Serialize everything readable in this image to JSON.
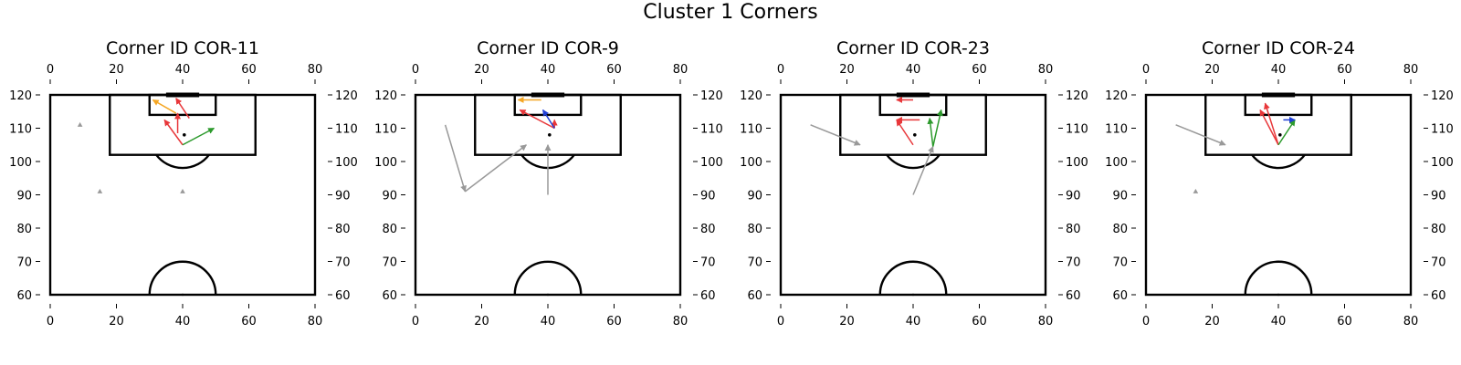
{
  "figure_title": "Cluster 1 Corners",
  "colors": {
    "pitch_lines": "#000000",
    "red": "#e8373a",
    "green": "#2c9a2c",
    "blue": "#1f3fd6",
    "orange": "#f5a623",
    "grey": "#999999"
  },
  "chart_data": [
    {
      "type": "scatter",
      "title": "Corner ID COR-11",
      "xlim": [
        0,
        80
      ],
      "ylim": [
        60,
        120
      ],
      "xticks": [
        0,
        20,
        40,
        60,
        80
      ],
      "yticks": [
        60,
        70,
        80,
        90,
        100,
        110,
        120
      ],
      "arrows": [
        {
          "color": "red",
          "from": [
            40,
            105
          ],
          "to": [
            34.5,
            112.5
          ]
        },
        {
          "color": "red",
          "from": [
            38.5,
            108.5
          ],
          "to": [
            38.5,
            114.5
          ]
        },
        {
          "color": "red",
          "from": [
            42,
            113
          ],
          "to": [
            38,
            119
          ]
        },
        {
          "color": "orange",
          "from": [
            38,
            114.5
          ],
          "to": [
            31,
            118.5
          ]
        },
        {
          "color": "green",
          "from": [
            40,
            105
          ],
          "to": [
            49.5,
            110
          ]
        }
      ],
      "markers": [
        {
          "color": "grey",
          "x": 9,
          "y": 111
        },
        {
          "color": "grey",
          "x": 15,
          "y": 91
        },
        {
          "color": "grey",
          "x": 40,
          "y": 91
        },
        {
          "color": "black",
          "x": 40.5,
          "y": 108
        }
      ]
    },
    {
      "type": "scatter",
      "title": "Corner ID COR-9",
      "xlim": [
        0,
        80
      ],
      "ylim": [
        60,
        120
      ],
      "xticks": [
        0,
        20,
        40,
        60,
        80
      ],
      "yticks": [
        60,
        70,
        80,
        90,
        100,
        110,
        120
      ],
      "arrows": [
        {
          "color": "grey",
          "from": [
            9,
            111
          ],
          "to": [
            15,
            91
          ]
        },
        {
          "color": "grey",
          "from": [
            15,
            91
          ],
          "to": [
            33.5,
            105
          ]
        },
        {
          "color": "grey",
          "from": [
            40,
            90
          ],
          "to": [
            40,
            105
          ]
        },
        {
          "color": "orange",
          "from": [
            38,
            118.5
          ],
          "to": [
            31,
            118.5
          ]
        },
        {
          "color": "red",
          "from": [
            42,
            110
          ],
          "to": [
            31.5,
            115.5
          ]
        },
        {
          "color": "red",
          "from": [
            42,
            110
          ],
          "to": [
            42,
            112.5
          ]
        },
        {
          "color": "blue",
          "from": [
            42,
            110
          ],
          "to": [
            38.5,
            115.5
          ]
        }
      ],
      "markers": [
        {
          "color": "black",
          "x": 40.5,
          "y": 108
        }
      ]
    },
    {
      "type": "scatter",
      "title": "Corner ID COR-23",
      "xlim": [
        0,
        80
      ],
      "ylim": [
        60,
        120
      ],
      "xticks": [
        0,
        20,
        40,
        60,
        80
      ],
      "yticks": [
        60,
        70,
        80,
        90,
        100,
        110,
        120
      ],
      "arrows": [
        {
          "color": "grey",
          "from": [
            9,
            111
          ],
          "to": [
            24,
            105
          ]
        },
        {
          "color": "grey",
          "from": [
            40,
            90
          ],
          "to": [
            46,
            104.5
          ]
        },
        {
          "color": "red",
          "from": [
            40,
            105
          ],
          "to": [
            35,
            112.5
          ]
        },
        {
          "color": "red",
          "from": [
            40,
            118.5
          ],
          "to": [
            35,
            118.5
          ]
        },
        {
          "color": "red",
          "from": [
            42,
            112.5
          ],
          "to": [
            35,
            112.5
          ]
        },
        {
          "color": "green",
          "from": [
            46,
            104.5
          ],
          "to": [
            48.5,
            115.5
          ]
        },
        {
          "color": "green",
          "from": [
            46,
            104.5
          ],
          "to": [
            45,
            113
          ]
        }
      ],
      "markers": [
        {
          "color": "black",
          "x": 40.5,
          "y": 108
        }
      ]
    },
    {
      "type": "scatter",
      "title": "Corner ID COR-24",
      "xlim": [
        0,
        80
      ],
      "ylim": [
        60,
        120
      ],
      "xticks": [
        0,
        20,
        40,
        60,
        80
      ],
      "yticks": [
        60,
        70,
        80,
        90,
        100,
        110,
        120
      ],
      "arrows": [
        {
          "color": "grey",
          "from": [
            9,
            111
          ],
          "to": [
            24,
            105
          ]
        },
        {
          "color": "red",
          "from": [
            40,
            105
          ],
          "to": [
            34.5,
            115.5
          ]
        },
        {
          "color": "red",
          "from": [
            40,
            105
          ],
          "to": [
            36,
            117.5
          ]
        },
        {
          "color": "green",
          "from": [
            40,
            105
          ],
          "to": [
            45,
            112.5
          ]
        },
        {
          "color": "blue",
          "from": [
            41.5,
            112.5
          ],
          "to": [
            45,
            112.5
          ]
        }
      ],
      "markers": [
        {
          "color": "grey",
          "x": 15,
          "y": 91
        },
        {
          "color": "black",
          "x": 40.5,
          "y": 108
        }
      ]
    }
  ]
}
